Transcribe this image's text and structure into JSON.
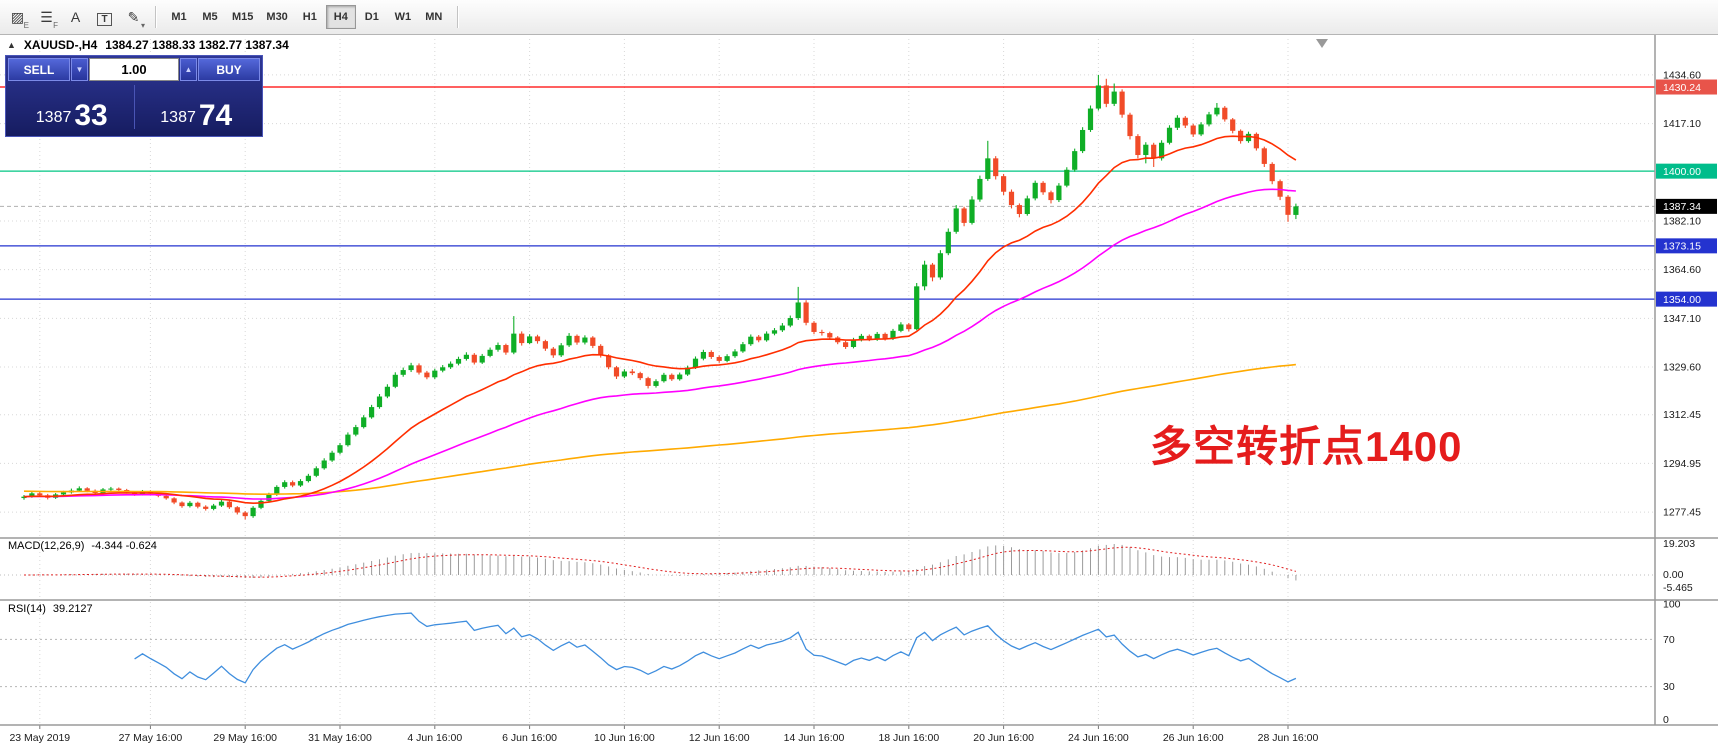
{
  "toolbar": {
    "tool_icons": [
      {
        "name": "pattern-tool-icon",
        "glyph": "▨",
        "sub": "E",
        "boxed": false
      },
      {
        "name": "list-tool-icon",
        "glyph": "☰",
        "sub": "F",
        "boxed": false
      },
      {
        "name": "text-tool-icon",
        "glyph": "A",
        "sub": "",
        "boxed": false
      },
      {
        "name": "label-tool-icon",
        "glyph": "T",
        "sub": "",
        "boxed": true
      },
      {
        "name": "draw-tool-icon",
        "glyph": "✎",
        "sub": "▾",
        "boxed": false
      }
    ],
    "timeframes": [
      {
        "label": "M1",
        "active": false
      },
      {
        "label": "M5",
        "active": false
      },
      {
        "label": "M15",
        "active": false
      },
      {
        "label": "M30",
        "active": false
      },
      {
        "label": "H1",
        "active": false
      },
      {
        "label": "H4",
        "active": true
      },
      {
        "label": "D1",
        "active": false
      },
      {
        "label": "W1",
        "active": false
      },
      {
        "label": "MN",
        "active": false
      }
    ]
  },
  "symbol_header": {
    "collapse_icon": "▲",
    "symbol": "XAUUSD-,H4",
    "ohlc": "1384.27 1388.33 1382.77 1387.34"
  },
  "trade_panel": {
    "sell_label": "SELL",
    "buy_label": "BUY",
    "volume": "1.00",
    "caret_down": "▼",
    "caret_up": "▲",
    "sell_price_main": "1387",
    "sell_price_big": "33",
    "buy_price_main": "1387",
    "buy_price_big": "74"
  },
  "annotation": {
    "text": "多空转折点1400",
    "color": "#e51c1c"
  },
  "indicators": {
    "macd": {
      "label": "MACD(12,26,9)",
      "values": "-4.344 -0.624",
      "fast": 12,
      "slow": 26,
      "signal": 9,
      "axis": [
        "19.203",
        "0.00",
        "-5.465"
      ]
    },
    "rsi": {
      "label": "RSI(14)",
      "value": "39.2127",
      "period": 14,
      "levels": [
        70,
        30
      ],
      "axis": [
        "100",
        "70",
        "30",
        "0"
      ]
    }
  },
  "chart_data": {
    "type": "candlestick",
    "symbol": "XAUUSD-",
    "timeframe": "H4",
    "ylim": [
      1268.5,
      1447.5
    ],
    "colors": {
      "bull": "#0fae26",
      "bear": "#f14b28",
      "grid": "#d8d8d8",
      "macd_hist": "#9b9b9b",
      "macd_signal": "#e02020",
      "rsi_line": "#3f8ede",
      "separator": "#9a9a9a"
    },
    "moving_averages": [
      {
        "name": "ma-slow",
        "color": "#ffaa00",
        "type": "anchored",
        "period": 200
      },
      {
        "name": "ma-medium",
        "color": "#ff00ff",
        "type": "ema",
        "period": 55
      },
      {
        "name": "ma-fast",
        "color": "#ff2e00",
        "type": "ema",
        "period": 20
      }
    ],
    "levels": [
      {
        "label": "1430.24",
        "price": 1430.24,
        "color": "#ff0000",
        "tag_bg": "#e8544a"
      },
      {
        "label": "1400.00",
        "price": 1400.0,
        "color": "#00c583",
        "tag_bg": "#00bd8b"
      },
      {
        "label": "1373.15",
        "price": 1373.15,
        "color": "#2433cf",
        "tag_bg": "#2433cf"
      },
      {
        "label": "1354.00",
        "price": 1354.0,
        "color": "#2433cf",
        "tag_bg": "#2433cf"
      }
    ],
    "bid": {
      "label": "1387.34",
      "price": 1387.34,
      "tag_bg": "#000000",
      "line_color": "#b0b0b0"
    },
    "price_axis": {
      "grid": [
        {
          "text": "1434.60",
          "price": 1434.6
        },
        {
          "text": "1417.10",
          "price": 1417.1
        },
        {
          "text": "1382.10",
          "price": 1382.1
        },
        {
          "text": "1364.60",
          "price": 1364.6
        },
        {
          "text": "1347.10",
          "price": 1347.1
        },
        {
          "text": "1329.60",
          "price": 1329.6
        },
        {
          "text": "1312.45",
          "price": 1312.45
        },
        {
          "text": "1294.95",
          "price": 1294.95
        },
        {
          "text": "1277.45",
          "price": 1277.45
        }
      ]
    },
    "time_axis": {
      "labels": [
        {
          "text": "23 May 2019",
          "i": 2
        },
        {
          "text": "27 May 16:00",
          "i": 16
        },
        {
          "text": "29 May 16:00",
          "i": 28
        },
        {
          "text": "31 May 16:00",
          "i": 40
        },
        {
          "text": "4 Jun 16:00",
          "i": 52
        },
        {
          "text": "6 Jun 16:00",
          "i": 64
        },
        {
          "text": "10 Jun 16:00",
          "i": 76
        },
        {
          "text": "12 Jun 16:00",
          "i": 88
        },
        {
          "text": "14 Jun 16:00",
          "i": 100
        },
        {
          "text": "18 Jun 16:00",
          "i": 112
        },
        {
          "text": "20 Jun 16:00",
          "i": 124
        },
        {
          "text": "24 Jun 16:00",
          "i": 136
        },
        {
          "text": "26 Jun 16:00",
          "i": 148
        },
        {
          "text": "28 Jun 16:00",
          "i": 160
        }
      ]
    },
    "candles": [
      [
        1282.5,
        1283.6,
        1281.9,
        1283.0
      ],
      [
        1283.0,
        1284.8,
        1282.6,
        1284.2
      ],
      [
        1284.2,
        1284.9,
        1283.0,
        1283.5
      ],
      [
        1283.5,
        1284.0,
        1282.0,
        1282.6
      ],
      [
        1282.6,
        1284.3,
        1282.2,
        1283.8
      ],
      [
        1283.8,
        1285.1,
        1283.4,
        1284.5
      ],
      [
        1284.5,
        1285.9,
        1284.1,
        1285.2
      ],
      [
        1285.2,
        1286.7,
        1284.8,
        1286.0
      ],
      [
        1286.0,
        1286.4,
        1284.6,
        1285.1
      ],
      [
        1285.1,
        1285.6,
        1283.8,
        1284.3
      ],
      [
        1284.3,
        1286.1,
        1283.9,
        1285.6
      ],
      [
        1285.6,
        1286.5,
        1285.1,
        1285.9
      ],
      [
        1285.9,
        1286.3,
        1284.9,
        1285.4
      ],
      [
        1285.4,
        1285.8,
        1284.1,
        1284.6
      ],
      [
        1284.6,
        1285.0,
        1283.3,
        1283.8
      ],
      [
        1283.8,
        1285.4,
        1283.4,
        1284.9
      ],
      [
        1284.9,
        1285.3,
        1283.6,
        1284.1
      ],
      [
        1284.1,
        1284.5,
        1282.8,
        1283.3
      ],
      [
        1283.3,
        1283.7,
        1281.9,
        1282.4
      ],
      [
        1282.4,
        1282.8,
        1280.3,
        1280.9
      ],
      [
        1280.9,
        1281.3,
        1279.0,
        1279.6
      ],
      [
        1279.6,
        1281.4,
        1279.1,
        1280.8
      ],
      [
        1280.8,
        1281.2,
        1278.8,
        1279.4
      ],
      [
        1279.4,
        1279.9,
        1278.0,
        1278.6
      ],
      [
        1278.6,
        1280.4,
        1278.1,
        1279.8
      ],
      [
        1279.8,
        1281.8,
        1279.3,
        1281.2
      ],
      [
        1281.2,
        1281.6,
        1278.6,
        1279.2
      ],
      [
        1279.2,
        1279.6,
        1276.6,
        1277.3
      ],
      [
        1277.3,
        1277.8,
        1274.8,
        1276.0
      ],
      [
        1276.0,
        1279.6,
        1275.4,
        1279.0
      ],
      [
        1279.0,
        1282.1,
        1278.5,
        1281.5
      ],
      [
        1281.5,
        1284.4,
        1281.0,
        1283.8
      ],
      [
        1283.8,
        1287.1,
        1283.3,
        1286.5
      ],
      [
        1286.5,
        1288.9,
        1285.9,
        1288.2
      ],
      [
        1288.2,
        1288.8,
        1286.4,
        1287.0
      ],
      [
        1287.0,
        1289.3,
        1286.5,
        1288.6
      ],
      [
        1288.6,
        1291.2,
        1288.1,
        1290.5
      ],
      [
        1290.5,
        1293.9,
        1290.0,
        1293.2
      ],
      [
        1293.2,
        1296.8,
        1292.7,
        1296.0
      ],
      [
        1296.0,
        1299.5,
        1295.5,
        1298.8
      ],
      [
        1298.8,
        1302.3,
        1298.2,
        1301.5
      ],
      [
        1301.5,
        1306.1,
        1301.0,
        1305.3
      ],
      [
        1305.3,
        1308.8,
        1304.7,
        1308.0
      ],
      [
        1308.0,
        1312.3,
        1307.5,
        1311.5
      ],
      [
        1311.5,
        1316.0,
        1311.0,
        1315.2
      ],
      [
        1315.2,
        1319.9,
        1314.6,
        1319.0
      ],
      [
        1319.0,
        1323.4,
        1318.4,
        1322.5
      ],
      [
        1322.5,
        1327.7,
        1322.0,
        1326.8
      ],
      [
        1326.8,
        1329.4,
        1326.1,
        1328.5
      ],
      [
        1328.5,
        1331.1,
        1327.8,
        1330.2
      ],
      [
        1330.2,
        1330.9,
        1326.9,
        1327.6
      ],
      [
        1327.6,
        1328.2,
        1325.2,
        1325.9
      ],
      [
        1325.9,
        1329.0,
        1325.3,
        1328.3
      ],
      [
        1328.3,
        1330.3,
        1327.7,
        1329.5
      ],
      [
        1329.5,
        1331.6,
        1328.9,
        1330.8
      ],
      [
        1330.8,
        1333.3,
        1330.2,
        1332.5
      ],
      [
        1332.5,
        1334.9,
        1331.9,
        1334.0
      ],
      [
        1334.0,
        1334.6,
        1330.5,
        1331.2
      ],
      [
        1331.2,
        1334.3,
        1330.7,
        1333.6
      ],
      [
        1333.6,
        1336.6,
        1333.1,
        1335.8
      ],
      [
        1335.8,
        1338.4,
        1335.1,
        1337.5
      ],
      [
        1337.5,
        1338.0,
        1334.0,
        1334.8
      ],
      [
        1334.8,
        1347.9,
        1334.2,
        1341.6
      ],
      [
        1341.6,
        1342.4,
        1337.3,
        1338.2
      ],
      [
        1338.2,
        1341.4,
        1337.8,
        1340.6
      ],
      [
        1340.6,
        1341.2,
        1338.0,
        1338.9
      ],
      [
        1338.9,
        1339.4,
        1335.4,
        1336.2
      ],
      [
        1336.2,
        1336.8,
        1332.9,
        1333.8
      ],
      [
        1333.8,
        1338.2,
        1333.2,
        1337.4
      ],
      [
        1337.4,
        1341.8,
        1336.8,
        1340.8
      ],
      [
        1340.8,
        1341.3,
        1337.6,
        1338.4
      ],
      [
        1338.4,
        1341.0,
        1337.7,
        1340.2
      ],
      [
        1340.2,
        1340.7,
        1336.4,
        1337.2
      ],
      [
        1337.2,
        1337.8,
        1333.0,
        1333.8
      ],
      [
        1333.8,
        1334.2,
        1328.8,
        1329.5
      ],
      [
        1329.5,
        1330.0,
        1325.3,
        1326.2
      ],
      [
        1326.2,
        1328.8,
        1325.6,
        1328.0
      ],
      [
        1328.0,
        1328.9,
        1326.7,
        1327.4
      ],
      [
        1327.4,
        1327.9,
        1324.9,
        1325.6
      ],
      [
        1325.6,
        1326.1,
        1321.9,
        1322.8
      ],
      [
        1322.8,
        1325.2,
        1322.2,
        1324.5
      ],
      [
        1324.5,
        1327.5,
        1324.0,
        1326.8
      ],
      [
        1326.8,
        1327.3,
        1324.6,
        1325.2
      ],
      [
        1325.2,
        1327.6,
        1324.7,
        1326.9
      ],
      [
        1326.9,
        1330.1,
        1326.4,
        1329.4
      ],
      [
        1329.4,
        1333.4,
        1328.9,
        1332.6
      ],
      [
        1332.6,
        1335.8,
        1332.0,
        1335.0
      ],
      [
        1335.0,
        1335.6,
        1332.5,
        1333.2
      ],
      [
        1333.2,
        1333.8,
        1331.1,
        1331.8
      ],
      [
        1331.8,
        1334.2,
        1331.3,
        1333.5
      ],
      [
        1333.5,
        1336.0,
        1332.9,
        1335.2
      ],
      [
        1335.2,
        1338.6,
        1334.7,
        1337.8
      ],
      [
        1337.8,
        1341.3,
        1337.2,
        1340.5
      ],
      [
        1340.5,
        1341.1,
        1338.5,
        1339.2
      ],
      [
        1339.2,
        1342.4,
        1338.7,
        1341.6
      ],
      [
        1341.6,
        1343.6,
        1341.0,
        1342.8
      ],
      [
        1342.8,
        1345.4,
        1342.2,
        1344.5
      ],
      [
        1344.5,
        1348.1,
        1343.9,
        1347.2
      ],
      [
        1347.2,
        1358.4,
        1346.5,
        1352.8
      ],
      [
        1352.8,
        1353.6,
        1344.6,
        1345.5
      ],
      [
        1345.5,
        1346.1,
        1341.4,
        1342.2
      ],
      [
        1342.2,
        1343.0,
        1340.9,
        1341.8
      ],
      [
        1341.8,
        1342.3,
        1339.5,
        1340.2
      ],
      [
        1340.2,
        1340.7,
        1337.8,
        1338.5
      ],
      [
        1338.5,
        1339.0,
        1336.1,
        1336.8
      ],
      [
        1336.8,
        1340.1,
        1336.3,
        1339.4
      ],
      [
        1339.4,
        1341.5,
        1338.8,
        1340.8
      ],
      [
        1340.8,
        1341.3,
        1338.9,
        1339.6
      ],
      [
        1339.6,
        1342.2,
        1339.0,
        1341.5
      ],
      [
        1341.5,
        1342.0,
        1339.1,
        1339.8
      ],
      [
        1339.8,
        1343.3,
        1339.3,
        1342.6
      ],
      [
        1342.6,
        1345.7,
        1342.1,
        1344.9
      ],
      [
        1344.9,
        1345.4,
        1342.4,
        1343.2
      ],
      [
        1343.2,
        1359.8,
        1342.8,
        1358.6
      ],
      [
        1358.6,
        1367.8,
        1357.2,
        1366.4
      ],
      [
        1366.4,
        1367.0,
        1360.4,
        1361.8
      ],
      [
        1361.8,
        1371.6,
        1361.0,
        1370.5
      ],
      [
        1370.5,
        1379.4,
        1369.8,
        1378.2
      ],
      [
        1378.2,
        1387.8,
        1377.5,
        1386.6
      ],
      [
        1386.6,
        1387.2,
        1380.2,
        1381.4
      ],
      [
        1381.4,
        1391.0,
        1380.8,
        1389.8
      ],
      [
        1389.8,
        1398.4,
        1389.0,
        1397.2
      ],
      [
        1397.2,
        1410.9,
        1396.5,
        1404.6
      ],
      [
        1404.6,
        1405.4,
        1397.0,
        1398.2
      ],
      [
        1398.2,
        1399.0,
        1391.4,
        1392.6
      ],
      [
        1392.6,
        1393.4,
        1386.6,
        1387.8
      ],
      [
        1387.8,
        1388.4,
        1383.4,
        1384.6
      ],
      [
        1384.6,
        1391.2,
        1384.0,
        1390.2
      ],
      [
        1390.2,
        1396.6,
        1389.5,
        1395.8
      ],
      [
        1395.8,
        1396.4,
        1391.5,
        1392.4
      ],
      [
        1392.4,
        1393.0,
        1388.4,
        1389.6
      ],
      [
        1389.6,
        1395.7,
        1388.9,
        1394.8
      ],
      [
        1394.8,
        1401.4,
        1394.2,
        1400.5
      ],
      [
        1400.5,
        1408.1,
        1399.8,
        1407.2
      ],
      [
        1407.2,
        1415.8,
        1406.5,
        1414.8
      ],
      [
        1414.8,
        1423.6,
        1414.1,
        1422.5
      ],
      [
        1422.5,
        1434.6,
        1421.8,
        1430.8
      ],
      [
        1430.8,
        1433.2,
        1423.0,
        1424.2
      ],
      [
        1424.2,
        1431.5,
        1423.4,
        1428.6
      ],
      [
        1428.6,
        1429.4,
        1419.2,
        1420.3
      ],
      [
        1420.3,
        1421.0,
        1411.4,
        1412.6
      ],
      [
        1412.6,
        1413.3,
        1404.6,
        1405.8
      ],
      [
        1405.8,
        1410.4,
        1402.8,
        1409.5
      ],
      [
        1409.5,
        1410.2,
        1401.5,
        1404.6
      ],
      [
        1404.6,
        1411.1,
        1403.8,
        1410.2
      ],
      [
        1410.2,
        1416.5,
        1409.6,
        1415.6
      ],
      [
        1415.6,
        1420.1,
        1414.8,
        1419.2
      ],
      [
        1419.2,
        1419.8,
        1415.5,
        1416.4
      ],
      [
        1416.4,
        1417.0,
        1412.3,
        1413.2
      ],
      [
        1413.2,
        1417.6,
        1412.6,
        1416.8
      ],
      [
        1416.8,
        1421.3,
        1416.1,
        1420.4
      ],
      [
        1420.4,
        1424.5,
        1419.7,
        1422.8
      ],
      [
        1422.8,
        1423.4,
        1417.8,
        1418.6
      ],
      [
        1418.6,
        1419.1,
        1413.6,
        1414.5
      ],
      [
        1414.5,
        1415.0,
        1409.9,
        1410.8
      ],
      [
        1410.8,
        1414.2,
        1410.2,
        1413.4
      ],
      [
        1413.4,
        1413.9,
        1407.4,
        1408.2
      ],
      [
        1408.2,
        1408.8,
        1401.5,
        1402.6
      ],
      [
        1402.6,
        1403.2,
        1395.3,
        1396.4
      ],
      [
        1396.4,
        1397.0,
        1389.6,
        1390.8
      ],
      [
        1390.8,
        1391.4,
        1381.8,
        1384.3
      ],
      [
        1384.27,
        1388.33,
        1382.77,
        1387.34
      ]
    ]
  }
}
